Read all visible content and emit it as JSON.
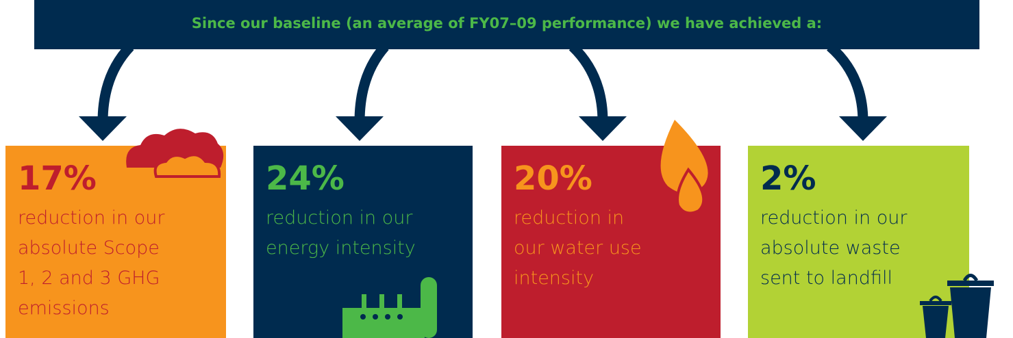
{
  "header": {
    "text": "Since our baseline (an average of FY07–09 performance) we have achieved a:"
  },
  "cards": [
    {
      "value": "17%",
      "lines": [
        "reduction in our",
        "absolute Scope",
        "1, 2 and 3 GHG",
        "emissions"
      ]
    },
    {
      "value": "24%",
      "lines": [
        "reduction in our",
        "energy intensity"
      ]
    },
    {
      "value": "20%",
      "lines": [
        "reduction in",
        "our water use",
        "intensity"
      ]
    },
    {
      "value": "2%",
      "lines": [
        "reduction in our",
        "absolute waste",
        "sent to landfill"
      ]
    }
  ]
}
